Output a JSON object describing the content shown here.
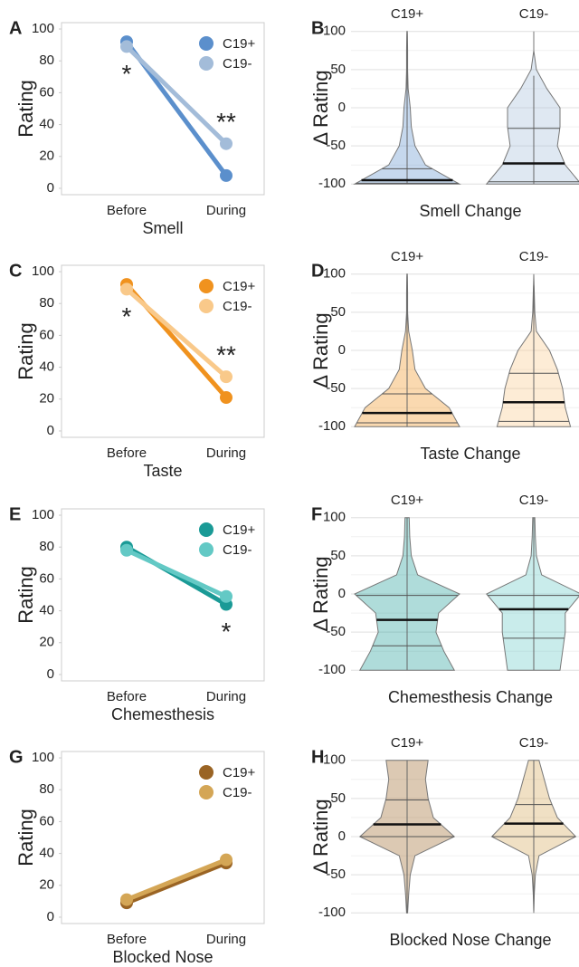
{
  "chart_data": [
    {
      "type": "line",
      "panel": "A",
      "categories": [
        "Before",
        "During"
      ],
      "xlabel": "Smell",
      "ylabel": "Rating",
      "ylim": [
        -4,
        104
      ],
      "yticks": [
        0,
        20,
        40,
        60,
        80,
        100
      ],
      "series": [
        {
          "name": "C19+",
          "color": "#5b8fcc",
          "values": [
            92,
            8
          ]
        },
        {
          "name": "C19-",
          "color": "#a3bcd9",
          "values": [
            89,
            28
          ]
        }
      ],
      "annotations": [
        "*",
        "**"
      ]
    },
    {
      "type": "violin",
      "panel": "B",
      "categories": [
        "C19+",
        "C19-"
      ],
      "xlabel": "Smell Change",
      "ylabel": "Δ Rating",
      "ylim": [
        -108,
        108
      ],
      "yticks": [
        -100,
        -50,
        0,
        50,
        100
      ],
      "grid": true,
      "density_y": [
        -100,
        -75,
        -50,
        -25,
        0,
        25,
        50,
        75,
        100
      ],
      "series": [
        {
          "color": "#5b8fcc",
          "min": -100,
          "q1": -99,
          "median": -95,
          "q3": -80,
          "max": 97,
          "density": [
            1.0,
            0.35,
            0.15,
            0.08,
            0.06,
            0.02,
            0.01,
            0.01,
            0.005
          ]
        },
        {
          "color": "#a3bcd9",
          "min": -100,
          "q1": -97,
          "median": -73,
          "q3": -27,
          "max": 42,
          "density": [
            0.9,
            0.6,
            0.45,
            0.5,
            0.5,
            0.25,
            0.05,
            0,
            0
          ]
        }
      ]
    },
    {
      "type": "line",
      "panel": "C",
      "categories": [
        "Before",
        "During"
      ],
      "xlabel": "Taste",
      "ylabel": "Rating",
      "ylim": [
        -4,
        104
      ],
      "yticks": [
        0,
        20,
        40,
        60,
        80,
        100
      ],
      "series": [
        {
          "name": "C19+",
          "color": "#f0921e",
          "values": [
            92,
            21
          ]
        },
        {
          "name": "C19-",
          "color": "#f9c98a",
          "values": [
            89,
            34
          ]
        }
      ],
      "annotations": [
        "*",
        "**"
      ]
    },
    {
      "type": "violin",
      "panel": "D",
      "categories": [
        "C19+",
        "C19-"
      ],
      "xlabel": "Taste Change",
      "ylabel": "Δ Rating",
      "ylim": [
        -108,
        108
      ],
      "yticks": [
        -100,
        -50,
        0,
        50,
        100
      ],
      "grid": true,
      "density_y": [
        -100,
        -75,
        -50,
        -25,
        0,
        25,
        50,
        75,
        100
      ],
      "series": [
        {
          "color": "#f0921e",
          "min": -100,
          "q1": -95,
          "median": -82,
          "q3": -57,
          "max": 97,
          "density": [
            1.0,
            0.8,
            0.35,
            0.15,
            0.1,
            0.03,
            0.01,
            0.01,
            0.005
          ]
        },
        {
          "color": "#f9c98a",
          "min": -100,
          "q1": -93,
          "median": -68,
          "q3": -30,
          "max": 85,
          "density": [
            0.7,
            0.6,
            0.55,
            0.45,
            0.3,
            0.05,
            0.02,
            0.01,
            0
          ]
        }
      ]
    },
    {
      "type": "line",
      "panel": "E",
      "categories": [
        "Before",
        "During"
      ],
      "xlabel": "Chemesthesis",
      "ylabel": "Rating",
      "ylim": [
        -4,
        104
      ],
      "yticks": [
        0,
        20,
        40,
        60,
        80,
        100
      ],
      "series": [
        {
          "name": "C19+",
          "color": "#1a9a96",
          "values": [
            80,
            44
          ]
        },
        {
          "name": "C19-",
          "color": "#63c9c5",
          "values": [
            78,
            49
          ]
        }
      ],
      "annotations": [
        null,
        "*"
      ]
    },
    {
      "type": "violin",
      "panel": "F",
      "categories": [
        "C19+",
        "C19-"
      ],
      "xlabel": "Chemesthesis Change",
      "ylabel": "Δ Rating",
      "ylim": [
        -108,
        108
      ],
      "yticks": [
        -100,
        -50,
        0,
        50,
        100
      ],
      "grid": true,
      "density_y": [
        -100,
        -75,
        -50,
        -25,
        0,
        25,
        50,
        75,
        100
      ],
      "series": [
        {
          "color": "#1a9a96",
          "min": -100,
          "q1": -68,
          "median": -34,
          "q3": -2,
          "max": 100,
          "density": [
            0.9,
            0.7,
            0.55,
            0.6,
            1.0,
            0.2,
            0.08,
            0.05,
            0.04
          ]
        },
        {
          "color": "#63c9c5",
          "min": -100,
          "q1": -58,
          "median": -20,
          "q3": -2,
          "max": 100,
          "density": [
            0.5,
            0.55,
            0.6,
            0.6,
            0.9,
            0.15,
            0.05,
            0.03,
            0.02
          ]
        }
      ]
    },
    {
      "type": "line",
      "panel": "G",
      "categories": [
        "Before",
        "During"
      ],
      "xlabel": "Blocked Nose",
      "ylabel": "Rating",
      "ylim": [
        -4,
        104
      ],
      "yticks": [
        0,
        20,
        40,
        60,
        80,
        100
      ],
      "series": [
        {
          "name": "C19+",
          "color": "#9a6424",
          "values": [
            9,
            34
          ]
        },
        {
          "name": "C19-",
          "color": "#d4a656",
          "values": [
            11,
            36
          ]
        }
      ]
    },
    {
      "type": "violin",
      "panel": "H",
      "categories": [
        "C19+",
        "C19-"
      ],
      "xlabel": "Blocked Nose Change",
      "ylabel": "Δ Rating",
      "ylim": [
        -108,
        108
      ],
      "yticks": [
        -100,
        -50,
        0,
        50,
        100
      ],
      "grid": true,
      "density_y": [
        -100,
        -75,
        -50,
        -25,
        0,
        25,
        50,
        75,
        100
      ],
      "series": [
        {
          "color": "#9a6424",
          "min": -100,
          "q1": 0,
          "median": 16,
          "q3": 48,
          "max": 100,
          "density": [
            0.01,
            0.03,
            0.06,
            0.15,
            0.9,
            0.5,
            0.4,
            0.35,
            0.4
          ]
        },
        {
          "color": "#d4a656",
          "min": -97,
          "q1": 0,
          "median": 17,
          "q3": 42,
          "max": 100,
          "density": [
            0,
            0.01,
            0.03,
            0.1,
            0.8,
            0.45,
            0.3,
            0.2,
            0.1
          ]
        }
      ]
    }
  ]
}
